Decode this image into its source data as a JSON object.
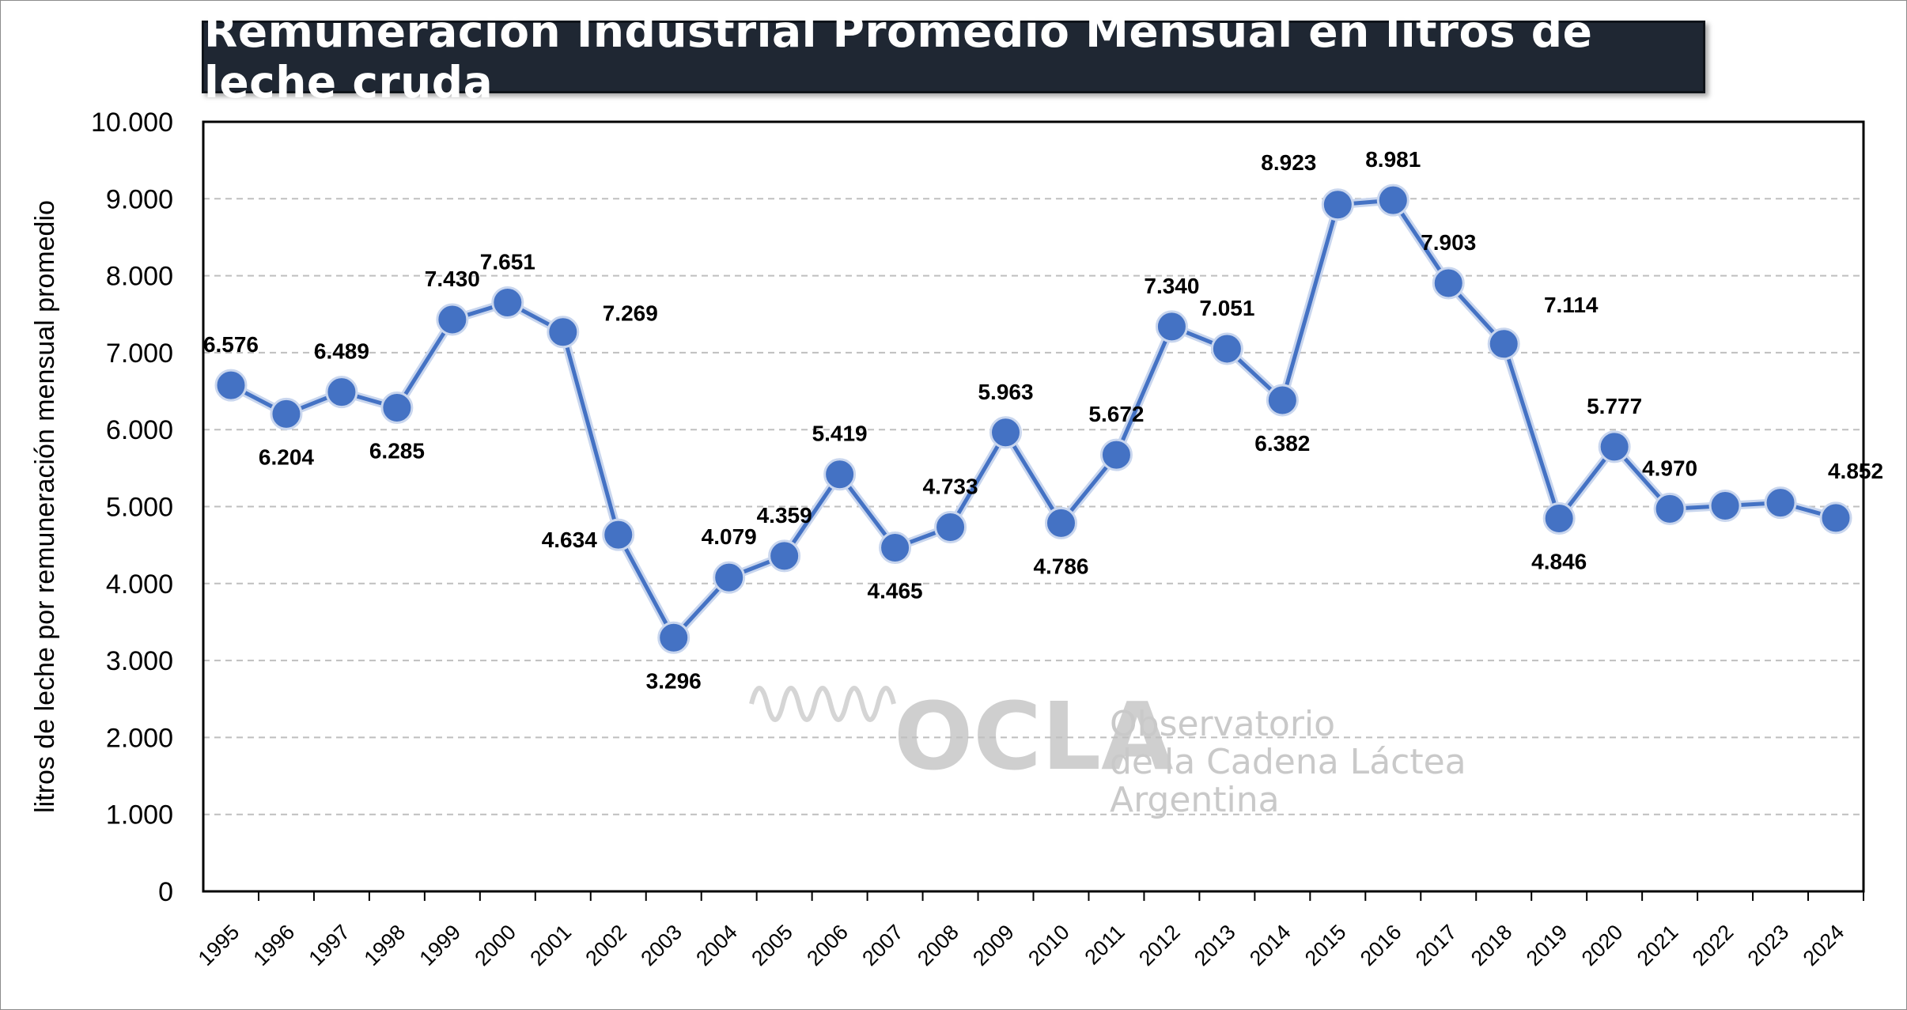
{
  "chart_data": {
    "type": "line",
    "title": "Remuneración Industrial Promedio Mensual en litros de leche cruda",
    "ylabel": "litros de leche por remuneración mensual promedio",
    "xlabel": "",
    "ylim": [
      0,
      10000
    ],
    "yticks": [
      "0",
      "1.000",
      "2.000",
      "3.000",
      "4.000",
      "5.000",
      "6.000",
      "7.000",
      "8.000",
      "9.000",
      "10.000"
    ],
    "grid": "horizontal dashed",
    "categories": [
      "1995",
      "1996",
      "1997",
      "1998",
      "1999",
      "2000",
      "2001",
      "2002",
      "2003",
      "2004",
      "2005",
      "2006",
      "2007",
      "2008",
      "2009",
      "2010",
      "2011",
      "2012",
      "2013",
      "2014",
      "2015",
      "2016",
      "2017",
      "2018",
      "2019",
      "2020",
      "2021",
      "2022",
      "2023",
      "2024"
    ],
    "series": [
      {
        "values": [
          6576,
          6204,
          6489,
          6285,
          7430,
          7651,
          7269,
          4634,
          3296,
          4079,
          4359,
          5419,
          4465,
          4733,
          5963,
          4786,
          5672,
          7340,
          7051,
          6382,
          8923,
          8981,
          7903,
          7114,
          4846,
          5777,
          4970,
          5010,
          5050,
          4852
        ],
        "labels": [
          "6.576",
          "6.204",
          "6.489",
          "6.285",
          "7.430",
          "7.651",
          "7.269",
          "4.634",
          "3.296",
          "4.079",
          "4.359",
          "5.419",
          "4.465",
          "4.733",
          "5.963",
          "4.786",
          "5.672",
          "7.340",
          "7.051",
          "6.382",
          "8.923",
          "8.981",
          "7.903",
          "7.114",
          "4.846",
          "5.777",
          "4.970",
          "",
          "",
          "4.852"
        ],
        "color": "#4472c4"
      }
    ]
  },
  "watermark": {
    "logo": "OCLA",
    "line1": "Observatorio",
    "line2": "de la Cadena Láctea",
    "line3": "Argentina"
  },
  "colors": {
    "title_bg": "#1f2733",
    "title_text": "#ffffff",
    "line": "#4472c4",
    "grid": "#bfbfbf"
  }
}
